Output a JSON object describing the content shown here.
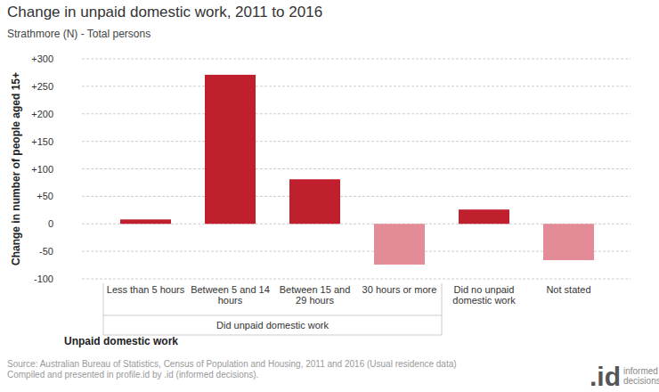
{
  "chart_data": {
    "type": "bar",
    "title": "Change in unpaid domestic work, 2011 to 2016",
    "subtitle": "Strathmore (N) - Total persons",
    "x_label": "Unpaid domestic work",
    "y_label": "Change in number of people aged 15+",
    "categories": [
      "Less than 5 hours",
      "Between 5 and 14 hours",
      "Between 15 and 29 hours",
      "30 hours or more",
      "Did no unpaid domestic work",
      "Not stated"
    ],
    "values": [
      8,
      271,
      81,
      -74,
      26,
      -66
    ],
    "colors": [
      "#c0202e",
      "#c0202e",
      "#c0202e",
      "#e38b96",
      "#c0202e",
      "#e38b96"
    ],
    "group": {
      "label": "Did unpaid domestic work",
      "first": "Less than 5 hours",
      "last": "30 hours or more"
    },
    "ylim": [
      -100,
      300
    ],
    "yticks": [
      {
        "value": 300,
        "label": "+300"
      },
      {
        "value": 250,
        "label": "+250"
      },
      {
        "value": 200,
        "label": "+200"
      },
      {
        "value": 150,
        "label": "+150"
      },
      {
        "value": 100,
        "label": "+100"
      },
      {
        "value": 50,
        "label": "+50"
      },
      0,
      -50,
      -100
    ],
    "grid": true,
    "source": [
      "Source: Australian Bureau of Statistics, Census of Population and Housing, 2011 and 2016 (Usual residence data)",
      "Compiled and presented in profile.id by .id (informed decisions)."
    ],
    "logo": [
      ".id",
      "informed",
      "decisions"
    ]
  }
}
